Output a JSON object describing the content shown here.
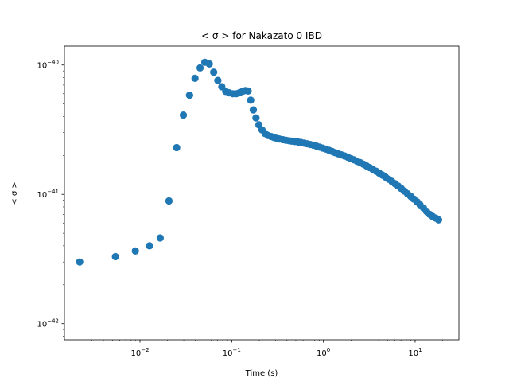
{
  "chart_data": {
    "type": "scatter",
    "title": "< σ >  for Nakazato 0 IBD",
    "xlabel": "Time (s)",
    "ylabel": "< σ >",
    "xscale": "log",
    "yscale": "log",
    "xlim": [
      0.0015,
      30
    ],
    "ylim": [
      7.5e-43,
      1.4e-40
    ],
    "x_ticks": [
      {
        "value": 0.01,
        "base": "10",
        "exp": "−2"
      },
      {
        "value": 0.1,
        "base": "10",
        "exp": "−1"
      },
      {
        "value": 1,
        "base": "10",
        "exp": "0"
      },
      {
        "value": 10,
        "base": "10",
        "exp": "1"
      }
    ],
    "y_ticks": [
      {
        "value": 1e-42,
        "base": "10",
        "exp": "−42"
      },
      {
        "value": 1e-41,
        "base": "10",
        "exp": "−41"
      },
      {
        "value": 1e-40,
        "base": "10",
        "exp": "−40"
      }
    ],
    "grid": false,
    "marker_color": "#1f77b4",
    "points": [
      [
        0.0022,
        3e-42
      ],
      [
        0.0054,
        3.3e-42
      ],
      [
        0.0089,
        3.65e-42
      ],
      [
        0.0127,
        4e-42
      ],
      [
        0.0166,
        4.6e-42
      ],
      [
        0.0207,
        8.9e-42
      ],
      [
        0.0251,
        2.3e-41
      ],
      [
        0.0297,
        4.1e-41
      ],
      [
        0.0347,
        5.85e-41
      ],
      [
        0.0398,
        7.9e-41
      ],
      [
        0.0452,
        9.5e-41
      ],
      [
        0.0509,
        1.05e-40
      ],
      [
        0.057,
        1.02e-40
      ],
      [
        0.0636,
        8.8e-41
      ],
      [
        0.0706,
        7.6e-41
      ],
      [
        0.078,
        6.8e-41
      ],
      [
        0.086,
        6.25e-41
      ],
      [
        0.094,
        6.1e-41
      ],
      [
        0.103,
        6e-41
      ],
      [
        0.112,
        6e-41
      ],
      [
        0.121,
        6.1e-41
      ],
      [
        0.131,
        6.25e-41
      ],
      [
        0.141,
        6.35e-41
      ],
      [
        0.151,
        6.3e-41
      ],
      [
        0.161,
        5.35e-41
      ],
      [
        0.172,
        4.5e-41
      ],
      [
        0.184,
        3.9e-41
      ],
      [
        0.198,
        3.45e-41
      ],
      [
        0.214,
        3.15e-41
      ],
      [
        0.232,
        2.95e-41
      ],
      [
        0.25,
        2.85e-41
      ],
      [
        0.27,
        2.8e-41
      ],
      [
        0.29,
        2.75e-41
      ],
      [
        0.31,
        2.71e-41
      ],
      [
        0.33,
        2.68e-41
      ],
      [
        0.36,
        2.65e-41
      ],
      [
        0.39,
        2.62e-41
      ],
      [
        0.42,
        2.6e-41
      ],
      [
        0.45,
        2.58e-41
      ],
      [
        0.49,
        2.56e-41
      ],
      [
        0.53,
        2.54e-41
      ],
      [
        0.57,
        2.52e-41
      ],
      [
        0.62,
        2.49e-41
      ],
      [
        0.67,
        2.46e-41
      ],
      [
        0.72,
        2.43e-41
      ],
      [
        0.78,
        2.4e-41
      ],
      [
        0.84,
        2.36e-41
      ],
      [
        0.91,
        2.32e-41
      ],
      [
        0.98,
        2.28e-41
      ],
      [
        1.06,
        2.24e-41
      ],
      [
        1.15,
        2.19e-41
      ],
      [
        1.24,
        2.15e-41
      ],
      [
        1.34,
        2.1e-41
      ],
      [
        1.45,
        2.06e-41
      ],
      [
        1.57,
        2.02e-41
      ],
      [
        1.7,
        1.98e-41
      ],
      [
        1.84,
        1.94e-41
      ],
      [
        1.99,
        1.89e-41
      ],
      [
        2.15,
        1.85e-41
      ],
      [
        2.33,
        1.8e-41
      ],
      [
        2.52,
        1.76e-41
      ],
      [
        2.73,
        1.71e-41
      ],
      [
        2.95,
        1.66e-41
      ],
      [
        3.2,
        1.61e-41
      ],
      [
        3.46,
        1.56e-41
      ],
      [
        3.75,
        1.51e-41
      ],
      [
        4.05,
        1.46e-41
      ],
      [
        4.39,
        1.41e-41
      ],
      [
        4.75,
        1.36e-41
      ],
      [
        5.14,
        1.31e-41
      ],
      [
        5.56,
        1.26e-41
      ],
      [
        6.02,
        1.21e-41
      ],
      [
        6.52,
        1.16e-41
      ],
      [
        7.05,
        1.11e-41
      ],
      [
        7.63,
        1.06e-41
      ],
      [
        8.26,
        1.01e-41
      ],
      [
        8.94,
        9.65e-42
      ],
      [
        9.67,
        9.2e-42
      ],
      [
        10.5,
        8.75e-42
      ],
      [
        11.3,
        8.3e-42
      ],
      [
        12.3,
        7.85e-42
      ],
      [
        13.3,
        7.4e-42
      ],
      [
        14.4,
        7e-42
      ],
      [
        15.5,
        6.75e-42
      ],
      [
        16.8,
        6.55e-42
      ],
      [
        18.0,
        6.35e-42
      ]
    ]
  }
}
